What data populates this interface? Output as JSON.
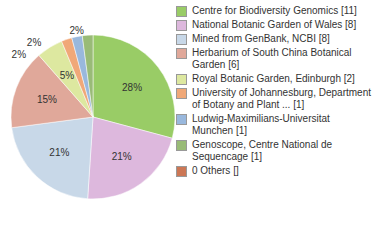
{
  "chart_data": {
    "type": "pie",
    "categories": [
      "Centre for Biodiversity Genomics [11]",
      "National Botanic Garden of Wales [8]",
      "Mined from GenBank, NCBI [8]",
      "Herbarium of South China Botanical Garden [6]",
      "Royal Botanic Garden, Edinburgh [2]",
      "University of Johannesburg, Department of Botany and Plant ... [1]",
      "Ludwig-Maximilians-Universitat Munchen [1]",
      "Genoscope, Centre National de Sequencage [1]",
      "0 Others []"
    ],
    "values": [
      28,
      21,
      21,
      15,
      5,
      2,
      2,
      2,
      0
    ],
    "value_labels": [
      "28%",
      "21%",
      "21%",
      "15%",
      "5%",
      "2%",
      "2%",
      "2%",
      null
    ],
    "colors": [
      "#99cc66",
      "#ddb8dd",
      "#c8d8e8",
      "#e0a89a",
      "#dde8a0",
      "#f0a878",
      "#99b8dd",
      "#99bb77",
      "#cc7755"
    ],
    "data_labels": true,
    "legend": "right"
  }
}
